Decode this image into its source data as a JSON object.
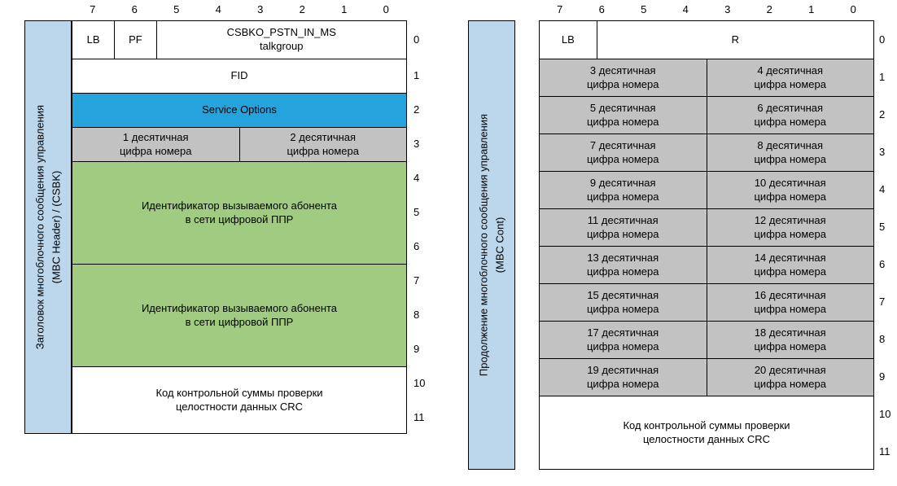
{
  "colors": {
    "band": "#BCD6EB",
    "highlight_blue": "#24A3DC",
    "highlight_green": "#A1CB80",
    "cell_gray": "#C2C2C2"
  },
  "bit_labels": [
    "7",
    "6",
    "5",
    "4",
    "3",
    "2",
    "1",
    "0"
  ],
  "byte_labels": [
    "0",
    "1",
    "2",
    "3",
    "4",
    "5",
    "6",
    "7",
    "8",
    "9",
    "10",
    "11"
  ],
  "left": {
    "band_lines": [
      "Заголовок многоблочного сообщения управления",
      "(MBC Header) / (CSBK)"
    ],
    "lb": "LB",
    "pf": "PF",
    "opcode_lines": [
      "CSBKO_PSTN_IN_MS",
      "talkgroup"
    ],
    "fid": "FID",
    "service_options": "Service Options",
    "digit_cells": [
      {
        "lines": [
          "1 десятичная",
          "цифра номера"
        ]
      },
      {
        "lines": [
          "2 десятичная",
          "цифра номера"
        ]
      }
    ],
    "callee_block_1": [
      "Идентификатор вызываемого абонента",
      "в сети цифровой ППР"
    ],
    "callee_block_2": [
      "Идентификатор вызываемого абонента",
      "в сети цифровой ППР"
    ],
    "crc_lines": [
      "Код контрольной суммы проверки",
      "целостности данных CRC"
    ]
  },
  "right": {
    "band_lines": [
      "Продолжение многоблочного сообщения управления",
      "(MBC Cont)"
    ],
    "lb": "LB",
    "r": "R",
    "digit_rows": [
      [
        {
          "lines": [
            "3 десятичная",
            "цифра номера"
          ]
        },
        {
          "lines": [
            "4 десятичная",
            "цифра номера"
          ]
        }
      ],
      [
        {
          "lines": [
            "5 десятичная",
            "цифра номера"
          ]
        },
        {
          "lines": [
            "6 десятичная",
            "цифра номера"
          ]
        }
      ],
      [
        {
          "lines": [
            "7 десятичная",
            "цифра номера"
          ]
        },
        {
          "lines": [
            "8 десятичная",
            "цифра номера"
          ]
        }
      ],
      [
        {
          "lines": [
            "9 десятичная",
            "цифра номера"
          ]
        },
        {
          "lines": [
            "10 десятичная",
            "цифра номера"
          ]
        }
      ],
      [
        {
          "lines": [
            "11 десятичная",
            "цифра номера"
          ]
        },
        {
          "lines": [
            "12 десятичная",
            "цифра номера"
          ]
        }
      ],
      [
        {
          "lines": [
            "13 десятичная",
            "цифра номера"
          ]
        },
        {
          "lines": [
            "14 десятичная",
            "цифра номера"
          ]
        }
      ],
      [
        {
          "lines": [
            "15 десятичная",
            "цифра номера"
          ]
        },
        {
          "lines": [
            "16 десятичная",
            "цифра номера"
          ]
        }
      ],
      [
        {
          "lines": [
            "17 десятичная",
            "цифра номера"
          ]
        },
        {
          "lines": [
            "18 десятичная",
            "цифра номера"
          ]
        }
      ],
      [
        {
          "lines": [
            "19 десятичная",
            "цифра номера"
          ]
        },
        {
          "lines": [
            "20 десятичная",
            "цифра номера"
          ]
        }
      ]
    ],
    "crc_lines": [
      "Код контрольной суммы проверки",
      "целостности данных CRC"
    ]
  }
}
